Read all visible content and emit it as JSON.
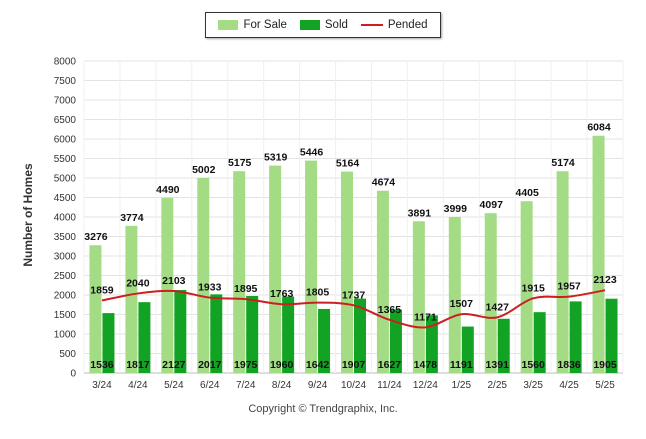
{
  "legend": {
    "for_sale_label": "For Sale",
    "sold_label": "Sold",
    "pended_label": "Pended"
  },
  "footer": {
    "copyright": "Copyright © Trendgraphix, Inc."
  },
  "colors": {
    "for_sale": "#a3dc84",
    "sold": "#13a324",
    "pended": "#cc1f1f",
    "grid": "#e3e3e3",
    "axis_text": "#333333"
  },
  "chart_data": {
    "type": "bar",
    "ylabel": "Number of Homes",
    "xlabel": "",
    "ylim": [
      0,
      8000
    ],
    "yticks": [
      0,
      500,
      1000,
      1500,
      2000,
      2500,
      3000,
      3500,
      4000,
      4500,
      5000,
      5500,
      6000,
      6500,
      7000,
      7500,
      8000
    ],
    "grid": true,
    "legend_position": "top-center",
    "categories": [
      "3/24",
      "4/24",
      "5/24",
      "6/24",
      "7/24",
      "8/24",
      "9/24",
      "10/24",
      "11/24",
      "12/24",
      "1/25",
      "2/25",
      "3/25",
      "4/25",
      "5/25"
    ],
    "series": [
      {
        "name": "For Sale",
        "type": "bar",
        "values": [
          3276,
          3774,
          4490,
          5002,
          5175,
          5319,
          5446,
          5164,
          4674,
          3891,
          3999,
          4097,
          4405,
          5174,
          6084
        ]
      },
      {
        "name": "Sold",
        "type": "bar",
        "values": [
          1536,
          1817,
          2127,
          2017,
          1975,
          1960,
          1642,
          1907,
          1627,
          1478,
          1191,
          1391,
          1560,
          1836,
          1905
        ]
      },
      {
        "name": "Pended",
        "type": "line",
        "values": [
          1859,
          2040,
          2103,
          1933,
          1895,
          1763,
          1805,
          1737,
          1365,
          1171,
          1507,
          1427,
          1915,
          1957,
          2123
        ]
      }
    ]
  }
}
